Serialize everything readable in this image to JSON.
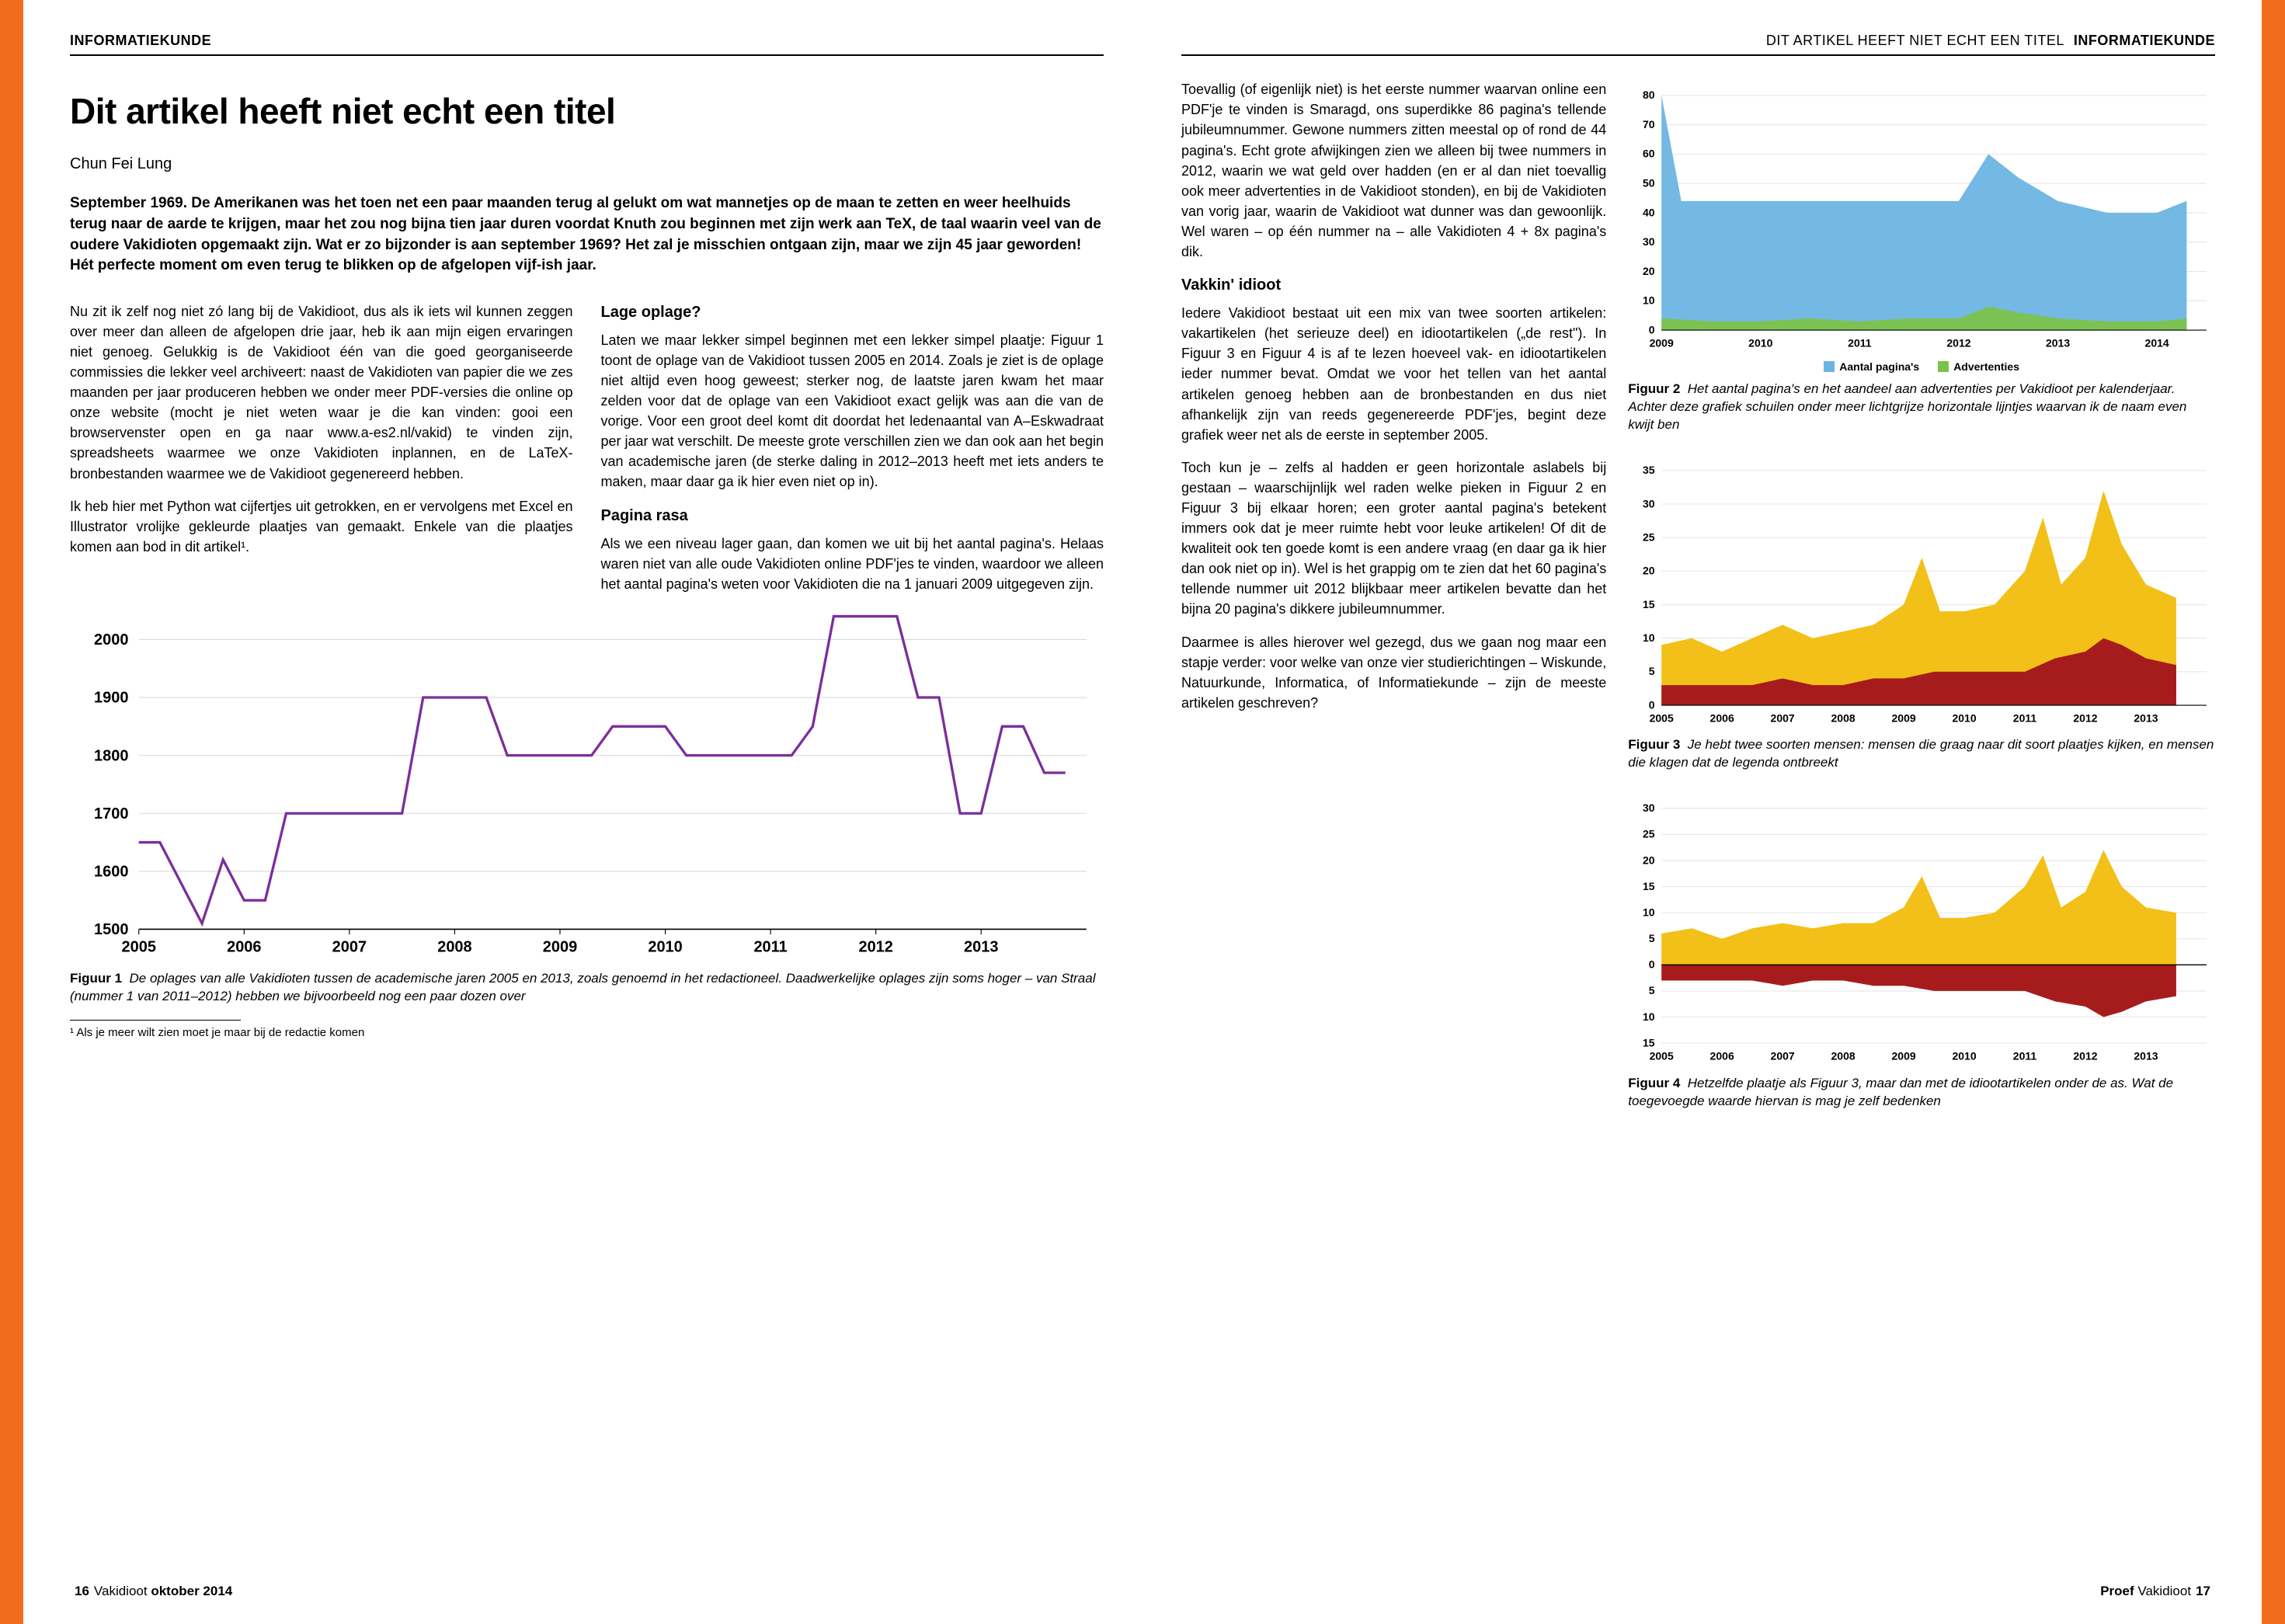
{
  "section": "INFORMATIEKUNDE",
  "running_title": "DIT ARTIKEL HEEFT NIET ECHT EEN TITEL",
  "title": "Dit artikel heeft niet echt een titel",
  "author": "Chun Fei Lung",
  "lead": "September 1969. De Amerikanen was het toen net een paar maanden terug al gelukt om wat mannetjes op de maan te zetten en weer heelhuids terug naar de aarde te krijgen, maar het zou nog bijna tien jaar duren voordat Knuth zou beginnen met zijn werk aan TeX, de taal waarin veel van de oudere Vakidioten opgemaakt zijn. Wat er zo bijzonder is aan september 1969? Het zal je misschien ontgaan zijn, maar we zijn 45 jaar geworden! Hét perfecte moment om even terug te blikken op de afgelopen vijf-ish jaar.",
  "body_left": {
    "p1": "Nu zit ik zelf nog niet zó lang bij de Vakidioot, dus als ik iets wil kunnen zeggen over meer dan alleen de afgelopen drie jaar, heb ik aan mijn eigen ervaringen niet genoeg. Gelukkig is de Vakidioot één van die goed georganiseerde commissies die lekker veel archiveert: naast de Vakidioten van papier die we zes maanden per jaar produceren hebben we onder meer PDF-versies die online op onze website (mocht je niet weten waar je die kan vinden: gooi een browservenster open en ga naar www.a-es2.nl/vakid) te vinden zijn, spreadsheets waarmee we onze Vakidioten inplannen, en de LaTeX-bronbestanden waarmee we de Vakidioot gegenereerd hebben.",
    "p2": "Ik heb hier met Python wat cijfertjes uit getrokken, en er vervolgens met Excel en Illustrator vrolijke gekleurde plaatjes van gemaakt. Enkele van die plaatjes komen aan bod in dit artikel¹.",
    "h_oplage": "Lage oplage?",
    "p3": "Laten we maar lekker simpel beginnen met een lekker simpel plaatje: Figuur 1 toont de oplage van de Vakidioot tussen 2005 en 2014. Zoals je ziet is de oplage niet altijd even hoog geweest; sterker nog, de laatste jaren kwam het maar zelden voor dat de oplage van een Vakidioot exact gelijk was aan die van de vorige. Voor een groot deel komt dit doordat het ledenaantal van A–Eskwadraat per jaar wat verschilt. De meeste grote verschillen zien we dan ook aan het begin van academische jaren (de sterke daling in 2012–2013 heeft met iets anders te maken, maar daar ga ik hier even niet op in).",
    "h_pagina": "Pagina rasa",
    "p4": "Als we een niveau lager gaan, dan komen we uit bij het aantal pagina's. Helaas waren niet van alle oude Vakidioten online PDF'jes te vinden, waardoor we alleen het aantal pagina's weten voor Vakidioten die na 1 januari 2009 uitgegeven zijn."
  },
  "fig1": {
    "type": "line",
    "line_color": "#7a2f9b",
    "line_width": 3,
    "background": "#ffffff",
    "grid_color": "#d9d9d9",
    "axis_color": "#000000",
    "xlim": [
      2005,
      2014
    ],
    "ylim": [
      1500,
      2050
    ],
    "yticks": [
      1500,
      1600,
      1700,
      1800,
      1900,
      2000
    ],
    "xticks": [
      2005,
      2006,
      2007,
      2008,
      2009,
      2010,
      2011,
      2012,
      2013
    ],
    "tick_fontsize": 18,
    "points": [
      [
        2005.0,
        1650
      ],
      [
        2005.2,
        1650
      ],
      [
        2005.4,
        1580
      ],
      [
        2005.6,
        1510
      ],
      [
        2005.8,
        1620
      ],
      [
        2006.0,
        1550
      ],
      [
        2006.2,
        1550
      ],
      [
        2006.4,
        1700
      ],
      [
        2006.6,
        1700
      ],
      [
        2006.8,
        1700
      ],
      [
        2007.0,
        1700
      ],
      [
        2007.5,
        1700
      ],
      [
        2007.7,
        1900
      ],
      [
        2008.0,
        1900
      ],
      [
        2008.3,
        1900
      ],
      [
        2008.5,
        1800
      ],
      [
        2008.8,
        1800
      ],
      [
        2009.0,
        1800
      ],
      [
        2009.3,
        1800
      ],
      [
        2009.5,
        1850
      ],
      [
        2009.8,
        1850
      ],
      [
        2010.0,
        1850
      ],
      [
        2010.2,
        1800
      ],
      [
        2010.4,
        1800
      ],
      [
        2010.6,
        1800
      ],
      [
        2010.8,
        1800
      ],
      [
        2011.0,
        1800
      ],
      [
        2011.2,
        1800
      ],
      [
        2011.4,
        1850
      ],
      [
        2011.6,
        2040
      ],
      [
        2012.0,
        2040
      ],
      [
        2012.2,
        2040
      ],
      [
        2012.4,
        1900
      ],
      [
        2012.6,
        1900
      ],
      [
        2012.8,
        1700
      ],
      [
        2013.0,
        1700
      ],
      [
        2013.2,
        1850
      ],
      [
        2013.4,
        1850
      ],
      [
        2013.6,
        1770
      ],
      [
        2013.8,
        1770
      ]
    ],
    "caption_label": "Figuur 1",
    "caption": "De oplages van alle Vakidioten tussen de academische jaren 2005 en 2013, zoals genoemd in het redactioneel. Daadwerkelijke oplages zijn soms hoger – van Straal (nummer 1 van 2011–2012) hebben we bijvoorbeeld nog een paar dozen over"
  },
  "footnote": "¹ Als je meer wilt zien moet je maar bij de redactie komen",
  "footer_left": {
    "page": "16",
    "mag": "Vakidioot",
    "issue": "oktober 2014"
  },
  "footer_right": {
    "issue": "Proef",
    "mag": "Vakidioot",
    "page": "17"
  },
  "body_right": {
    "p1": "Toevallig (of eigenlijk niet) is het eerste nummer waarvan online een PDF'je te vinden is Smaragd, ons superdikke 86 pagina's tellende jubileumnummer. Gewone nummers zitten meestal op of rond de 44 pagina's. Echt grote afwijkingen zien we alleen bij twee nummers in 2012, waarin we wat geld over hadden (en er al dan niet toevallig ook meer advertenties in de Vakidioot stonden), en bij de Vakidioten van vorig jaar, waarin de Vakidioot wat dunner was dan gewoonlijk. Wel waren – op één nummer na – alle Vakidioten 4 + 8x pagina's dik.",
    "h_vakkin": "Vakkin' idioot",
    "p2": "Iedere Vakidioot bestaat uit een mix van twee soorten artikelen: vakartikelen (het serieuze deel) en idiootartikelen („de rest\"). In Figuur 3 en Figuur 4 is af te lezen hoeveel vak- en idiootartikelen ieder nummer bevat. Omdat we voor het tellen van het aantal artikelen genoeg hebben aan de bronbestanden en dus niet afhankelijk zijn van reeds gegenereerde PDF'jes, begint deze grafiek weer net als de eerste in september 2005.",
    "p3": "Toch kun je – zelfs al hadden er geen horizontale aslabels bij gestaan – waarschijnlijk wel raden welke pieken in Figuur 2 en Figuur 3 bij elkaar horen; een groter aantal pagina's betekent immers ook dat je meer ruimte hebt voor leuke artikelen! Of dit de kwaliteit ook ten goede komt is een andere vraag (en daar ga ik hier dan ook niet op in). Wel is het grappig om te zien dat het 60 pagina's tellende nummer uit 2012 blijkbaar meer artikelen bevatte dan het bijna 20 pagina's dikkere jubileumnummer.",
    "p4": "Daarmee is alles hierover wel gezegd, dus we gaan nog maar een stapje verder: voor welke van onze vier studierichtingen – Wiskunde, Natuurkunde, Informatica, of Informatiekunde – zijn de meeste artikelen geschreven?"
  },
  "fig2": {
    "type": "area",
    "xlim": [
      2009,
      2014.5
    ],
    "ylim": [
      0,
      80
    ],
    "yticks": [
      0,
      10,
      20,
      30,
      40,
      50,
      60,
      70,
      80
    ],
    "xticks": [
      2009,
      2010,
      2011,
      2012,
      2013,
      2014
    ],
    "tick_fontsize": 13,
    "grid_color": "#e6e6e6",
    "series": [
      {
        "name": "Aantal pagina's",
        "color": "#6db4e3",
        "points": [
          [
            2009,
            80
          ],
          [
            2009.2,
            44
          ],
          [
            2009.5,
            44
          ],
          [
            2010,
            44
          ],
          [
            2010.5,
            44
          ],
          [
            2011,
            44
          ],
          [
            2011.5,
            44
          ],
          [
            2012,
            44
          ],
          [
            2012.3,
            60
          ],
          [
            2012.6,
            52
          ],
          [
            2013,
            44
          ],
          [
            2013.5,
            40
          ],
          [
            2014,
            40
          ],
          [
            2014.3,
            44
          ]
        ]
      },
      {
        "name": "Advertenties",
        "color": "#7cc24a",
        "points": [
          [
            2009,
            4
          ],
          [
            2009.5,
            3
          ],
          [
            2010,
            3
          ],
          [
            2010.5,
            4
          ],
          [
            2011,
            3
          ],
          [
            2011.5,
            4
          ],
          [
            2012,
            4
          ],
          [
            2012.3,
            8
          ],
          [
            2012.6,
            6
          ],
          [
            2013,
            4
          ],
          [
            2013.5,
            3
          ],
          [
            2014,
            3
          ],
          [
            2014.3,
            4
          ]
        ]
      }
    ],
    "caption_label": "Figuur 2",
    "caption": "Het aantal pagina's en het aandeel aan advertenties per Vakidioot per kalenderjaar. Achter deze grafiek schuilen onder meer lichtgrijze horizontale lijntjes waarvan ik de naam even kwijt ben"
  },
  "fig3": {
    "type": "area-stacked",
    "xlim": [
      2005,
      2014
    ],
    "ylim": [
      0,
      35
    ],
    "yticks": [
      0,
      5,
      10,
      15,
      20,
      25,
      30,
      35
    ],
    "xticks": [
      2005,
      2006,
      2007,
      2008,
      2009,
      2010,
      2011,
      2012,
      2013
    ],
    "tick_fontsize": 13,
    "grid_color": "#e6e6e6",
    "lower": {
      "color": "#a61c1c",
      "points": [
        [
          2005,
          3
        ],
        [
          2005.5,
          3
        ],
        [
          2006,
          3
        ],
        [
          2006.5,
          3
        ],
        [
          2007,
          4
        ],
        [
          2007.5,
          3
        ],
        [
          2008,
          3
        ],
        [
          2008.5,
          4
        ],
        [
          2009,
          4
        ],
        [
          2009.5,
          5
        ],
        [
          2010,
          5
        ],
        [
          2010.5,
          5
        ],
        [
          2011,
          5
        ],
        [
          2011.5,
          7
        ],
        [
          2012,
          8
        ],
        [
          2012.3,
          10
        ],
        [
          2012.6,
          9
        ],
        [
          2013,
          7
        ],
        [
          2013.5,
          6
        ]
      ]
    },
    "upper": {
      "color": "#f2c018",
      "points": [
        [
          2005,
          9
        ],
        [
          2005.5,
          10
        ],
        [
          2006,
          8
        ],
        [
          2006.5,
          10
        ],
        [
          2007,
          12
        ],
        [
          2007.5,
          10
        ],
        [
          2008,
          11
        ],
        [
          2008.5,
          12
        ],
        [
          2009,
          15
        ],
        [
          2009.3,
          22
        ],
        [
          2009.6,
          14
        ],
        [
          2010,
          14
        ],
        [
          2010.5,
          15
        ],
        [
          2011,
          20
        ],
        [
          2011.3,
          28
        ],
        [
          2011.6,
          18
        ],
        [
          2012,
          22
        ],
        [
          2012.3,
          32
        ],
        [
          2012.6,
          24
        ],
        [
          2013,
          18
        ],
        [
          2013.5,
          16
        ]
      ]
    },
    "caption_label": "Figuur 3",
    "caption": "Je hebt twee soorten mensen: mensen die graag naar dit soort plaatjes kijken, en mensen die klagen dat de legenda ontbreekt"
  },
  "fig4": {
    "type": "area-mirrored",
    "xlim": [
      2005,
      2014
    ],
    "ylim": [
      -15,
      30
    ],
    "yticks": [
      15,
      10,
      5,
      0,
      5,
      10,
      15,
      20,
      25,
      30
    ],
    "ytick_vals": [
      -15,
      -10,
      -5,
      0,
      5,
      10,
      15,
      20,
      25,
      30
    ],
    "xticks": [
      2005,
      2006,
      2007,
      2008,
      2009,
      2010,
      2011,
      2012,
      2013
    ],
    "tick_fontsize": 13,
    "grid_color": "#e6e6e6",
    "upper": {
      "color": "#f2c018",
      "points": [
        [
          2005,
          6
        ],
        [
          2005.5,
          7
        ],
        [
          2006,
          5
        ],
        [
          2006.5,
          7
        ],
        [
          2007,
          8
        ],
        [
          2007.5,
          7
        ],
        [
          2008,
          8
        ],
        [
          2008.5,
          8
        ],
        [
          2009,
          11
        ],
        [
          2009.3,
          17
        ],
        [
          2009.6,
          9
        ],
        [
          2010,
          9
        ],
        [
          2010.5,
          10
        ],
        [
          2011,
          15
        ],
        [
          2011.3,
          21
        ],
        [
          2011.6,
          11
        ],
        [
          2012,
          14
        ],
        [
          2012.3,
          22
        ],
        [
          2012.6,
          15
        ],
        [
          2013,
          11
        ],
        [
          2013.5,
          10
        ]
      ]
    },
    "lower": {
      "color": "#a61c1c",
      "points": [
        [
          2005,
          -3
        ],
        [
          2005.5,
          -3
        ],
        [
          2006,
          -3
        ],
        [
          2006.5,
          -3
        ],
        [
          2007,
          -4
        ],
        [
          2007.5,
          -3
        ],
        [
          2008,
          -3
        ],
        [
          2008.5,
          -4
        ],
        [
          2009,
          -4
        ],
        [
          2009.5,
          -5
        ],
        [
          2010,
          -5
        ],
        [
          2010.5,
          -5
        ],
        [
          2011,
          -5
        ],
        [
          2011.5,
          -7
        ],
        [
          2012,
          -8
        ],
        [
          2012.3,
          -10
        ],
        [
          2012.6,
          -9
        ],
        [
          2013,
          -7
        ],
        [
          2013.5,
          -6
        ]
      ]
    },
    "caption_label": "Figuur 4",
    "caption": "Hetzelfde plaatje als Figuur 3, maar dan met de idiootartikelen onder de as. Wat de toegevoegde waarde hiervan is mag je zelf bedenken"
  }
}
